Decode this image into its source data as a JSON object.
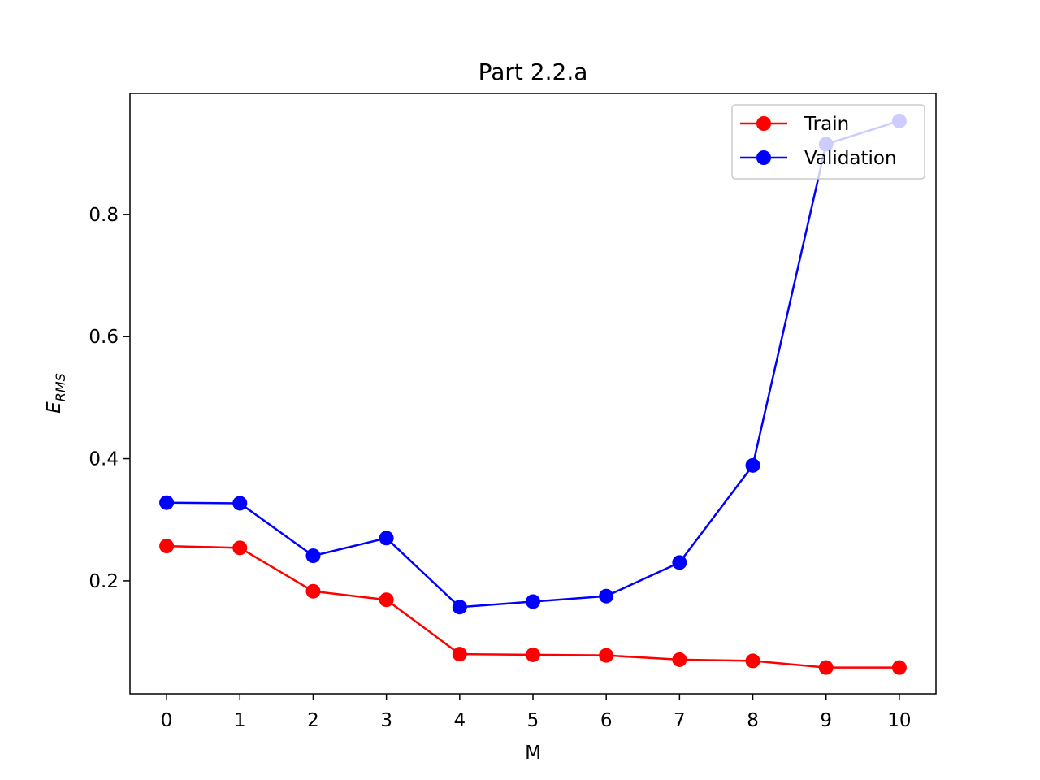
{
  "chart_data": {
    "type": "line",
    "title": "Part 2.2.a",
    "xlabel": "M",
    "ylabel": "E",
    "ylabel_subscript": "RMS",
    "x": [
      0,
      1,
      2,
      3,
      4,
      5,
      6,
      7,
      8,
      9,
      10
    ],
    "xlim": [
      -0.5,
      10.5
    ],
    "ylim": [
      0.015,
      0.998
    ],
    "xticks": [
      0,
      1,
      2,
      3,
      4,
      5,
      6,
      7,
      8,
      9,
      10
    ],
    "xtick_labels": [
      "0",
      "1",
      "2",
      "3",
      "4",
      "5",
      "6",
      "7",
      "8",
      "9",
      "10"
    ],
    "yticks": [
      0.2,
      0.4,
      0.6,
      0.8
    ],
    "ytick_labels": [
      "0.2",
      "0.4",
      "0.6",
      "0.8"
    ],
    "grid": false,
    "legend_position": "top-right",
    "series": [
      {
        "name": "Train",
        "color": "#ff0000",
        "marker": "circle",
        "values": [
          0.257,
          0.254,
          0.183,
          0.169,
          0.08,
          0.079,
          0.078,
          0.071,
          0.069,
          0.058,
          0.058
        ]
      },
      {
        "name": "Validation",
        "color": "#0000ff",
        "marker": "circle",
        "values": [
          0.328,
          0.327,
          0.241,
          0.27,
          0.157,
          0.166,
          0.175,
          0.23,
          0.389,
          0.915,
          0.953
        ]
      }
    ]
  }
}
